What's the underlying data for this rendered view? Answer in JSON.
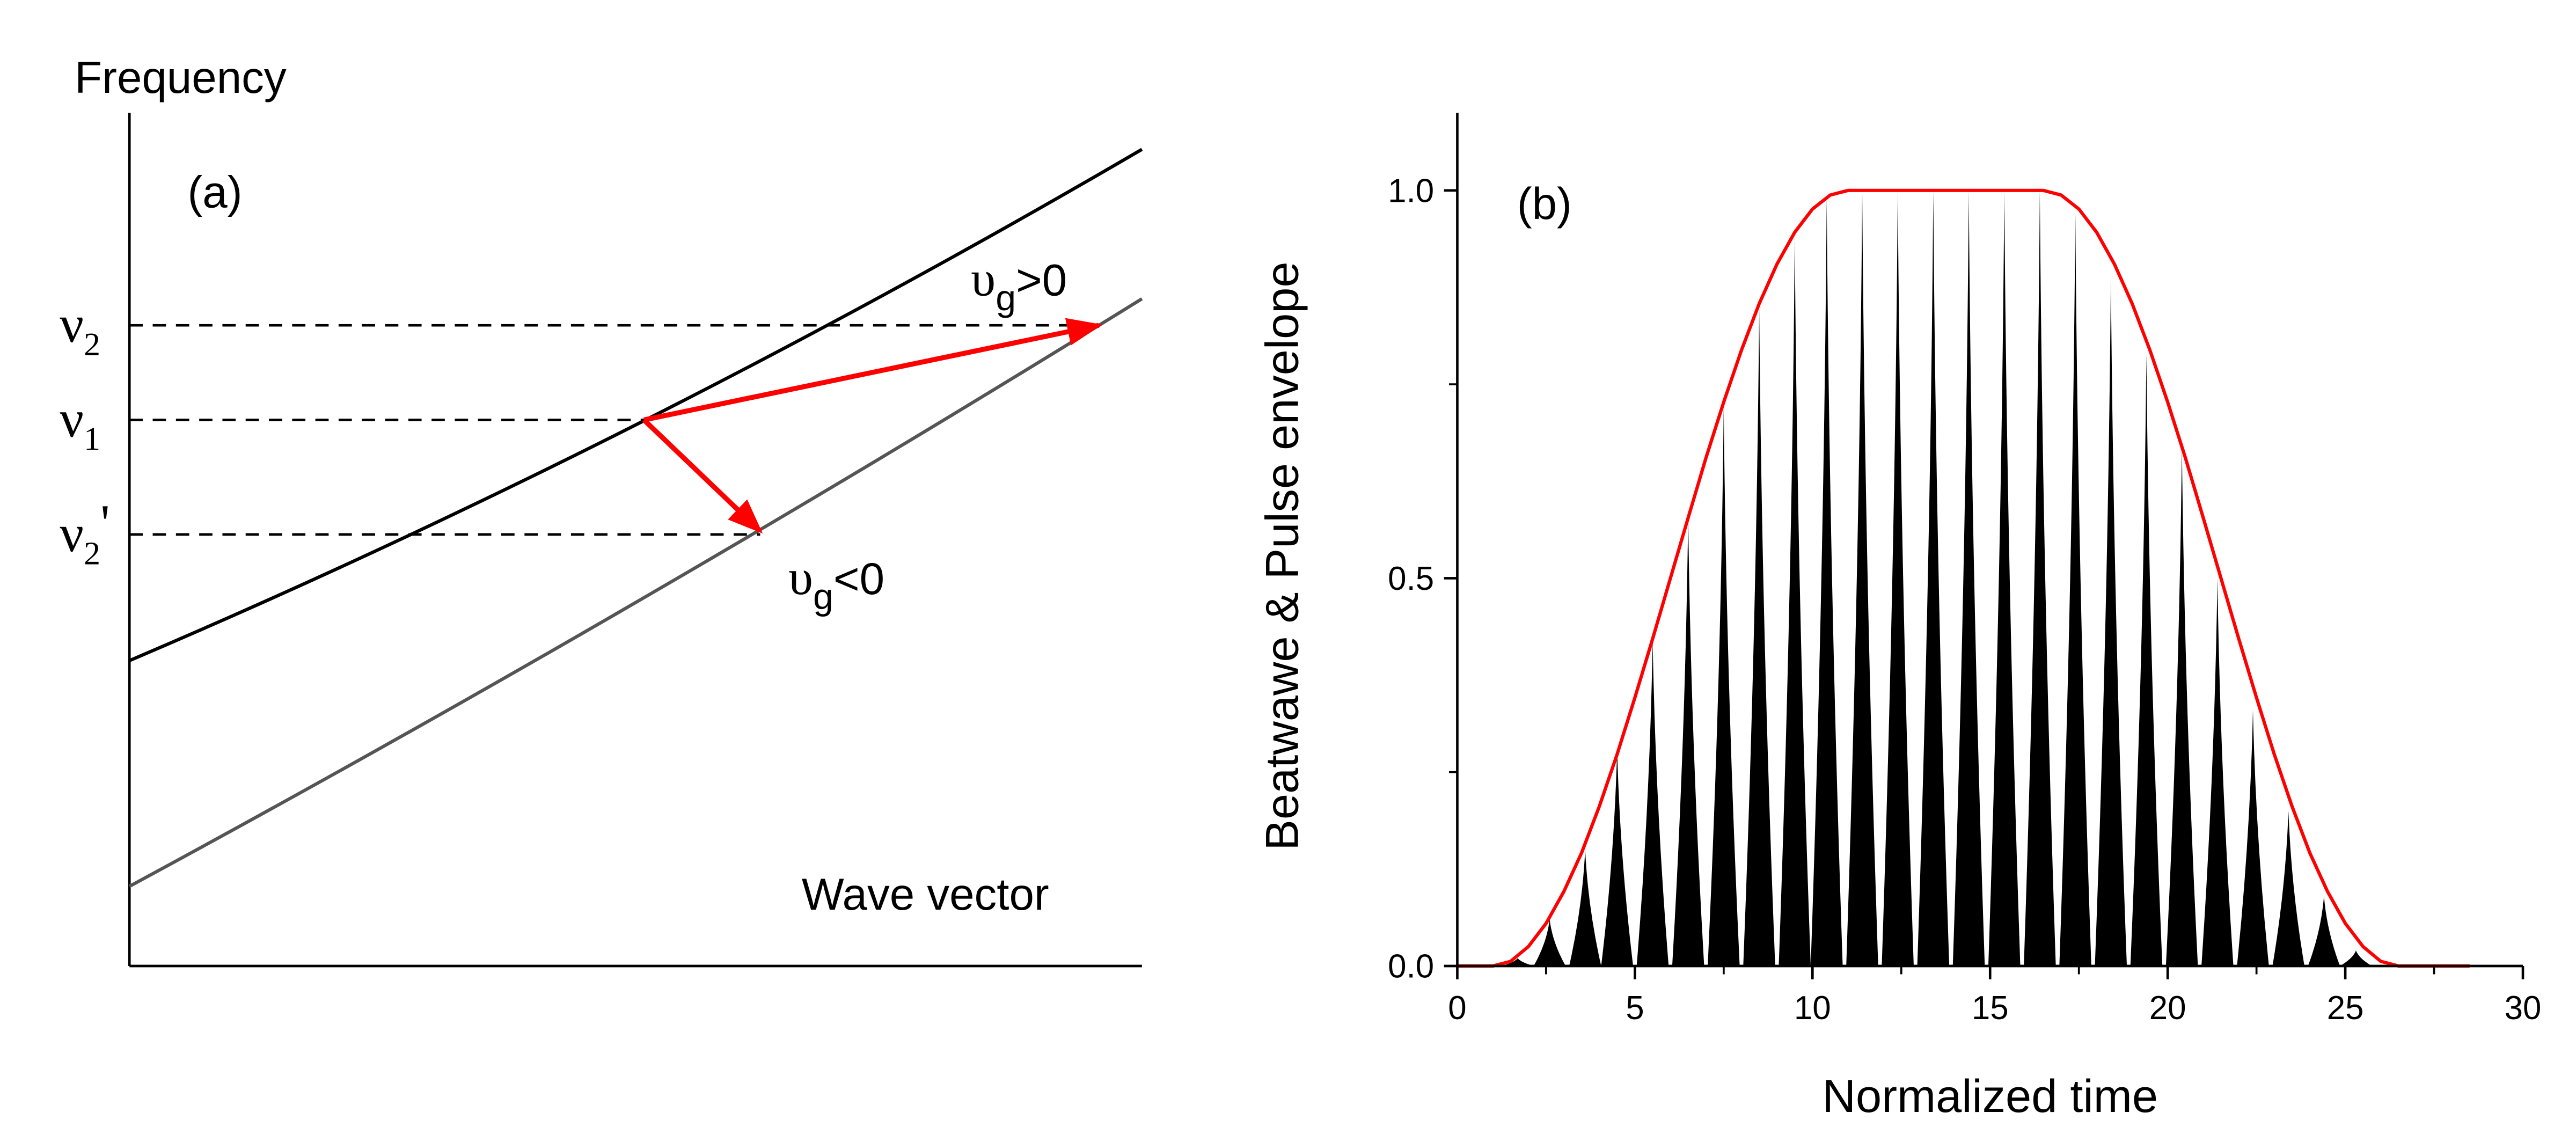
{
  "panel_a": {
    "label": "(a)",
    "y_label": "Frequency",
    "x_label": "Wave vector",
    "levels": [
      {
        "symbol": "ν",
        "sub": "2"
      },
      {
        "symbol": "ν",
        "sub": "1"
      },
      {
        "symbol": "ν",
        "sub": "2",
        "suffix": "'"
      }
    ],
    "annotations": [
      {
        "symbol": "υ",
        "sub": "g",
        "rest": ">0"
      },
      {
        "symbol": "υ",
        "sub": "g",
        "rest": "<0"
      }
    ]
  },
  "chart_data": {
    "type": "line",
    "label": "(b)",
    "xlabel": "Normalized time",
    "ylabel": "Beatwawe & Pulse envelope",
    "xlim": [
      0,
      30
    ],
    "ylim": [
      0,
      1.1
    ],
    "xticks": [
      0,
      5,
      10,
      15,
      20,
      25,
      30
    ],
    "xminorticks": [
      2.5,
      7.5,
      12.5,
      17.5,
      22.5,
      27.5
    ],
    "yticks": [
      {
        "value": 0,
        "label": "0.0"
      },
      {
        "value": 0.5,
        "label": "0.5"
      },
      {
        "value": 1,
        "label": "1.0"
      }
    ],
    "yminorticks": [
      0.25,
      0.75
    ],
    "series": [
      {
        "kind": "spikes",
        "color": "#000000",
        "x": [
          1.7,
          2.6,
          3.6,
          4.5,
          5.5,
          6.5,
          7.5,
          8.5,
          9.5,
          10.4,
          11.4,
          12.4,
          13.4,
          14.4,
          15.4,
          16.4,
          17.4,
          18.4,
          19.4,
          20.4,
          21.4,
          22.4,
          23.4,
          24.4,
          25.3
        ],
        "values": [
          0.01,
          0.06,
          0.15,
          0.28,
          0.42,
          0.58,
          0.72,
          0.85,
          0.94,
          0.99,
          1.0,
          1.0,
          1.0,
          1.0,
          1.0,
          1.0,
          0.97,
          0.89,
          0.79,
          0.67,
          0.5,
          0.33,
          0.2,
          0.09,
          0.02
        ]
      },
      {
        "kind": "line",
        "color": "#ff0000",
        "x": [
          0,
          0.5,
          1,
          1.5,
          2,
          2.5,
          3,
          3.5,
          4,
          4.5,
          5,
          5.5,
          6,
          6.5,
          7,
          7.5,
          8,
          8.5,
          9,
          9.5,
          10,
          10.5,
          11,
          11.5,
          12,
          12.5,
          13,
          13.5,
          14,
          14.5,
          15,
          15.5,
          16,
          16.5,
          17,
          17.5,
          18,
          18.5,
          19,
          19.5,
          20,
          20.5,
          21,
          21.5,
          22,
          22.5,
          23,
          23.5,
          24,
          24.5,
          25,
          25.5,
          26,
          26.5,
          27,
          27.5,
          28,
          28.5
        ],
        "values": [
          0,
          0,
          0,
          0.006,
          0.025,
          0.055,
          0.096,
          0.146,
          0.206,
          0.273,
          0.346,
          0.422,
          0.5,
          0.578,
          0.655,
          0.727,
          0.794,
          0.854,
          0.905,
          0.946,
          0.976,
          0.994,
          1,
          1,
          1,
          1,
          1,
          1,
          1,
          1,
          1,
          1,
          1,
          1,
          0.994,
          0.976,
          0.946,
          0.905,
          0.854,
          0.794,
          0.727,
          0.655,
          0.578,
          0.5,
          0.422,
          0.346,
          0.273,
          0.206,
          0.146,
          0.096,
          0.055,
          0.025,
          0.006,
          0,
          0,
          0,
          0,
          0
        ]
      }
    ]
  }
}
